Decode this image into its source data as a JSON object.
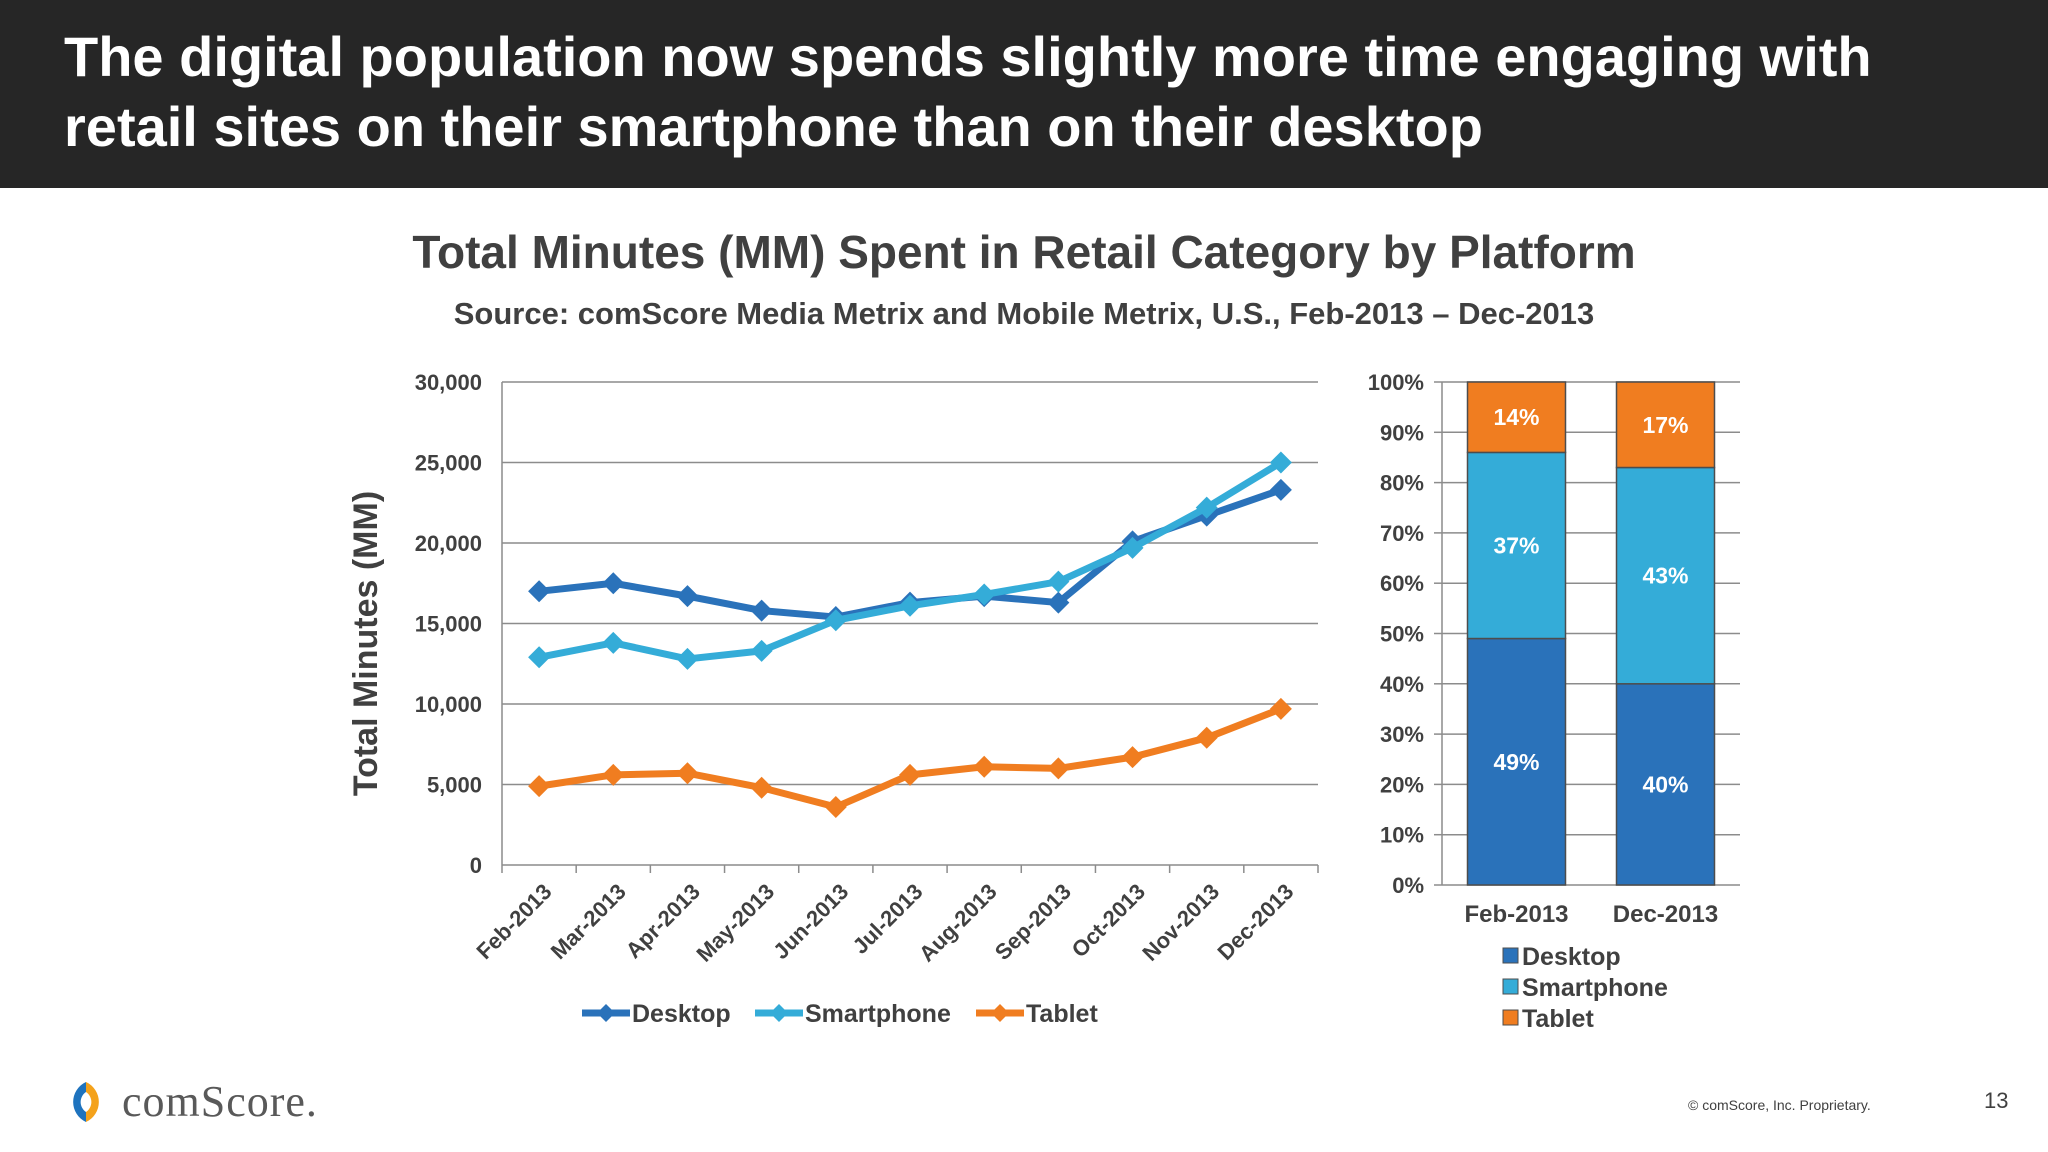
{
  "headline": "The digital population now spends slightly more time engaging with retail sites on their smartphone than on their desktop",
  "chart_title": "Total Minutes (MM) Spent in Retail Category by Platform",
  "chart_subtitle": "Source: comScore Media Metrix and Mobile Metrix, U.S., Feb-2013 – Dec-2013",
  "colors": {
    "desktop": "#2A72BA",
    "smartphone": "#34ACD8",
    "tablet": "#F07D20"
  },
  "chart_data": [
    {
      "type": "line",
      "ylabel": "Total Minutes (MM)",
      "ylim": [
        0,
        30000
      ],
      "yticks": [
        0,
        5000,
        10000,
        15000,
        20000,
        25000,
        30000
      ],
      "ytick_labels": [
        "0",
        "5,000",
        "10,000",
        "15,000",
        "20,000",
        "25,000",
        "30,000"
      ],
      "grid": true,
      "legend_position": "bottom",
      "categories": [
        "Feb-2013",
        "Mar-2013",
        "Apr-2013",
        "May-2013",
        "Jun-2013",
        "Jul-2013",
        "Aug-2013",
        "Sep-2013",
        "Oct-2013",
        "Nov-2013",
        "Dec-2013"
      ],
      "series": [
        {
          "name": "Desktop",
          "color": "#2A72BA",
          "values": [
            17000,
            17500,
            16700,
            15800,
            15400,
            16300,
            16700,
            16300,
            20100,
            21700,
            23300
          ]
        },
        {
          "name": "Smartphone",
          "color": "#34ACD8",
          "values": [
            12900,
            13800,
            12800,
            13300,
            15200,
            16100,
            16800,
            17600,
            19700,
            22200,
            25000
          ]
        },
        {
          "name": "Tablet",
          "color": "#F07D20",
          "values": [
            4900,
            5600,
            5700,
            4800,
            3600,
            5600,
            6100,
            6000,
            6700,
            7900,
            9700
          ]
        }
      ]
    },
    {
      "type": "bar",
      "stacked": true,
      "ylim": [
        0,
        100
      ],
      "ytick_labels": [
        "0%",
        "10%",
        "20%",
        "30%",
        "40%",
        "50%",
        "60%",
        "70%",
        "80%",
        "90%",
        "100%"
      ],
      "grid": true,
      "legend_position": "bottom",
      "categories": [
        "Feb-2013",
        "Dec-2013"
      ],
      "series": [
        {
          "name": "Desktop",
          "color": "#2A72BA",
          "values": [
            49,
            40
          ],
          "labels": [
            "49%",
            "40%"
          ]
        },
        {
          "name": "Smartphone",
          "color": "#34ACD8",
          "values": [
            37,
            43
          ],
          "labels": [
            "37%",
            "43%"
          ]
        },
        {
          "name": "Tablet",
          "color": "#F07D20",
          "values": [
            14,
            17
          ],
          "labels": [
            "14%",
            "17%"
          ]
        }
      ]
    }
  ],
  "footer": {
    "logo_text": "comScore.",
    "copyright": "© comScore, Inc. Proprietary.",
    "page_number": "13"
  }
}
